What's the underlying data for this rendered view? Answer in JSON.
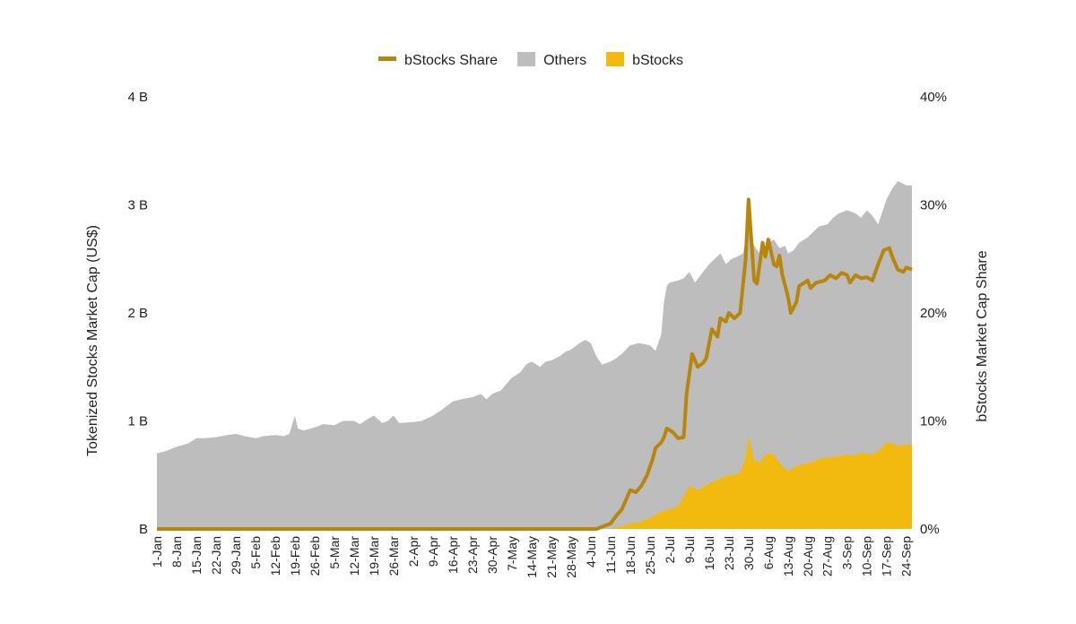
{
  "chart_data": {
    "type": "area",
    "title": "",
    "legend": {
      "placement": "top-center",
      "items": [
        {
          "label": "bStocks Share",
          "kind": "line",
          "color": "#b8860b"
        },
        {
          "label": "Others",
          "kind": "area",
          "color": "#bdbdbd"
        },
        {
          "label": "bStocks",
          "kind": "area",
          "color": "#f2b90f"
        }
      ]
    },
    "y_left": {
      "label": "Tokenized Stocks Market Cap (US$)",
      "range": [
        0,
        4
      ],
      "ticks": [
        {
          "value": 0,
          "label": "B"
        },
        {
          "value": 1,
          "label": "1 B"
        },
        {
          "value": 2,
          "label": "2 B"
        },
        {
          "value": 3,
          "label": "3 B"
        },
        {
          "value": 4,
          "label": "4 B"
        }
      ]
    },
    "y_right": {
      "label": "bStocks Market Cap Share",
      "range": [
        0,
        40
      ],
      "ticks": [
        {
          "value": 0,
          "label": "0%"
        },
        {
          "value": 10,
          "label": "10%"
        },
        {
          "value": 20,
          "label": "20%"
        },
        {
          "value": 30,
          "label": "30%"
        },
        {
          "value": 40,
          "label": "40%"
        }
      ]
    },
    "x_ticks": [
      "1-Jan",
      "8-Jan",
      "15-Jan",
      "22-Jan",
      "29-Jan",
      "5-Feb",
      "12-Feb",
      "19-Feb",
      "26-Feb",
      "5-Mar",
      "12-Mar",
      "19-Mar",
      "26-Mar",
      "2-Apr",
      "9-Apr",
      "16-Apr",
      "23-Apr",
      "30-Apr",
      "7-May",
      "14-May",
      "21-May",
      "28-May",
      "4-Jun",
      "11-Jun",
      "18-Jun",
      "25-Jun",
      "2-Jul",
      "9-Jul",
      "16-Jul",
      "23-Jul",
      "30-Jul",
      "6-Aug",
      "13-Aug",
      "20-Aug",
      "27-Aug",
      "3-Sep",
      "10-Sep",
      "17-Sep",
      "24-Sep"
    ],
    "grid": false,
    "series": [
      {
        "name": "Others",
        "unit": "B US$",
        "stack_role": "total market cap (top of stack)",
        "points": [
          [
            "1-Jan",
            0.7
          ],
          [
            "4-Jan",
            0.72
          ],
          [
            "8-Jan",
            0.76
          ],
          [
            "12-Jan",
            0.79
          ],
          [
            "15-Jan",
            0.84
          ],
          [
            "18-Jan",
            0.84
          ],
          [
            "22-Jan",
            0.85
          ],
          [
            "26-Jan",
            0.87
          ],
          [
            "29-Jan",
            0.88
          ],
          [
            "1-Feb",
            0.86
          ],
          [
            "5-Feb",
            0.84
          ],
          [
            "8-Feb",
            0.86
          ],
          [
            "12-Feb",
            0.87
          ],
          [
            "15-Feb",
            0.86
          ],
          [
            "17-Feb",
            0.88
          ],
          [
            "19-Feb",
            1.05
          ],
          [
            "20-Feb",
            0.93
          ],
          [
            "22-Feb",
            0.91
          ],
          [
            "26-Feb",
            0.94
          ],
          [
            "1-Mar",
            0.97
          ],
          [
            "5-Mar",
            0.96
          ],
          [
            "8-Mar",
            1.0
          ],
          [
            "12-Mar",
            1.0
          ],
          [
            "14-Mar",
            0.97
          ],
          [
            "17-Mar",
            1.02
          ],
          [
            "19-Mar",
            1.05
          ],
          [
            "22-Mar",
            0.98
          ],
          [
            "24-Mar",
            1.0
          ],
          [
            "26-Mar",
            1.05
          ],
          [
            "28-Mar",
            0.98
          ],
          [
            "2-Apr",
            0.99
          ],
          [
            "5-Apr",
            1.0
          ],
          [
            "9-Apr",
            1.05
          ],
          [
            "12-Apr",
            1.1
          ],
          [
            "16-Apr",
            1.18
          ],
          [
            "19-Apr",
            1.2
          ],
          [
            "23-Apr",
            1.22
          ],
          [
            "26-Apr",
            1.25
          ],
          [
            "28-Apr",
            1.2
          ],
          [
            "30-Apr",
            1.25
          ],
          [
            "3-May",
            1.28
          ],
          [
            "7-May",
            1.4
          ],
          [
            "10-May",
            1.45
          ],
          [
            "12-May",
            1.52
          ],
          [
            "14-May",
            1.55
          ],
          [
            "17-May",
            1.5
          ],
          [
            "19-May",
            1.55
          ],
          [
            "21-May",
            1.56
          ],
          [
            "24-May",
            1.6
          ],
          [
            "26-May",
            1.64
          ],
          [
            "28-May",
            1.66
          ],
          [
            "31-May",
            1.72
          ],
          [
            "2-Jun",
            1.75
          ],
          [
            "4-Jun",
            1.72
          ],
          [
            "6-Jun",
            1.6
          ],
          [
            "8-Jun",
            1.52
          ],
          [
            "11-Jun",
            1.55
          ],
          [
            "13-Jun",
            1.58
          ],
          [
            "15-Jun",
            1.62
          ],
          [
            "18-Jun",
            1.7
          ],
          [
            "21-Jun",
            1.72
          ],
          [
            "23-Jun",
            1.71
          ],
          [
            "25-Jun",
            1.7
          ],
          [
            "27-Jun",
            1.65
          ],
          [
            "29-Jun",
            1.8
          ],
          [
            "30-Jun",
            2.1
          ],
          [
            "1-Jul",
            2.25
          ],
          [
            "2-Jul",
            2.28
          ],
          [
            "5-Jul",
            2.3
          ],
          [
            "7-Jul",
            2.32
          ],
          [
            "9-Jul",
            2.38
          ],
          [
            "11-Jul",
            2.28
          ],
          [
            "13-Jul",
            2.35
          ],
          [
            "16-Jul",
            2.45
          ],
          [
            "18-Jul",
            2.5
          ],
          [
            "20-Jul",
            2.55
          ],
          [
            "22-Jul",
            2.45
          ],
          [
            "24-Jul",
            2.5
          ],
          [
            "26-Jul",
            2.52
          ],
          [
            "28-Jul",
            2.55
          ],
          [
            "30-Jul",
            2.8
          ],
          [
            "1-Aug",
            2.62
          ],
          [
            "3-Aug",
            2.55
          ],
          [
            "5-Aug",
            2.58
          ],
          [
            "6-Aug",
            2.65
          ],
          [
            "8-Aug",
            2.68
          ],
          [
            "10-Aug",
            2.6
          ],
          [
            "12-Aug",
            2.62
          ],
          [
            "13-Aug",
            2.55
          ],
          [
            "15-Aug",
            2.58
          ],
          [
            "17-Aug",
            2.65
          ],
          [
            "20-Aug",
            2.7
          ],
          [
            "22-Aug",
            2.75
          ],
          [
            "24-Aug",
            2.8
          ],
          [
            "27-Aug",
            2.82
          ],
          [
            "29-Aug",
            2.88
          ],
          [
            "31-Aug",
            2.92
          ],
          [
            "3-Sep",
            2.95
          ],
          [
            "6-Sep",
            2.92
          ],
          [
            "8-Sep",
            2.88
          ],
          [
            "10-Sep",
            2.95
          ],
          [
            "12-Sep",
            2.9
          ],
          [
            "14-Sep",
            2.82
          ],
          [
            "17-Sep",
            3.05
          ],
          [
            "19-Sep",
            3.15
          ],
          [
            "21-Sep",
            3.22
          ],
          [
            "24-Sep",
            3.18
          ],
          [
            "26-Sep",
            3.18
          ]
        ],
        "color": "#bdbdbd"
      },
      {
        "name": "bStocks",
        "unit": "B US$",
        "points": [
          [
            "1-Jan",
            0.0
          ],
          [
            "11-Jun",
            0.0
          ],
          [
            "13-Jun",
            0.02
          ],
          [
            "16-Jun",
            0.03
          ],
          [
            "18-Jun",
            0.05
          ],
          [
            "21-Jun",
            0.06
          ],
          [
            "23-Jun",
            0.08
          ],
          [
            "25-Jun",
            0.1
          ],
          [
            "27-Jun",
            0.13
          ],
          [
            "29-Jun",
            0.16
          ],
          [
            "2-Jul",
            0.18
          ],
          [
            "5-Jul",
            0.21
          ],
          [
            "7-Jul",
            0.3
          ],
          [
            "9-Jul",
            0.4
          ],
          [
            "12-Jul",
            0.36
          ],
          [
            "14-Jul",
            0.39
          ],
          [
            "16-Jul",
            0.42
          ],
          [
            "18-Jul",
            0.44
          ],
          [
            "20-Jul",
            0.47
          ],
          [
            "23-Jul",
            0.5
          ],
          [
            "25-Jul",
            0.5
          ],
          [
            "27-Jul",
            0.52
          ],
          [
            "29-Jul",
            0.66
          ],
          [
            "30-Jul",
            0.86
          ],
          [
            "1-Aug",
            0.63
          ],
          [
            "3-Aug",
            0.62
          ],
          [
            "5-Aug",
            0.68
          ],
          [
            "6-Aug",
            0.7
          ],
          [
            "8-Aug",
            0.69
          ],
          [
            "10-Aug",
            0.61
          ],
          [
            "13-Aug",
            0.53
          ],
          [
            "15-Aug",
            0.57
          ],
          [
            "17-Aug",
            0.59
          ],
          [
            "20-Aug",
            0.61
          ],
          [
            "22-Aug",
            0.62
          ],
          [
            "24-Aug",
            0.65
          ],
          [
            "27-Aug",
            0.66
          ],
          [
            "30-Aug",
            0.67
          ],
          [
            "3-Sep",
            0.69
          ],
          [
            "5-Sep",
            0.68
          ],
          [
            "8-Sep",
            0.7
          ],
          [
            "10-Sep",
            0.7
          ],
          [
            "12-Sep",
            0.69
          ],
          [
            "14-Sep",
            0.72
          ],
          [
            "17-Sep",
            0.8
          ],
          [
            "19-Sep",
            0.79
          ],
          [
            "21-Sep",
            0.77
          ],
          [
            "24-Sep",
            0.78
          ],
          [
            "26-Sep",
            0.78
          ]
        ],
        "color": "#f2b90f"
      },
      {
        "name": "bStocks Share",
        "unit": "%",
        "axis": "right",
        "points": [
          [
            "1-Jan",
            0.0
          ],
          [
            "6-Jun",
            0.0
          ],
          [
            "11-Jun",
            0.5
          ],
          [
            "13-Jun",
            1.2
          ],
          [
            "15-Jun",
            1.8
          ],
          [
            "17-Jun",
            3.0
          ],
          [
            "18-Jun",
            3.6
          ],
          [
            "20-Jun",
            3.4
          ],
          [
            "22-Jun",
            4.0
          ],
          [
            "24-Jun",
            5.0
          ],
          [
            "26-Jun",
            6.5
          ],
          [
            "27-Jun",
            7.5
          ],
          [
            "29-Jun",
            8.0
          ],
          [
            "30-Jun",
            8.5
          ],
          [
            "1-Jul",
            9.3
          ],
          [
            "3-Jul",
            9.0
          ],
          [
            "5-Jul",
            8.4
          ],
          [
            "7-Jul",
            8.5
          ],
          [
            "8-Jul",
            12.5
          ],
          [
            "10-Jul",
            16.2
          ],
          [
            "12-Jul",
            15.0
          ],
          [
            "14-Jul",
            15.4
          ],
          [
            "15-Jul",
            15.8
          ],
          [
            "17-Jul",
            18.5
          ],
          [
            "19-Jul",
            17.8
          ],
          [
            "20-Jul",
            19.5
          ],
          [
            "22-Jul",
            19.2
          ],
          [
            "23-Jul",
            20.0
          ],
          [
            "25-Jul",
            19.5
          ],
          [
            "27-Jul",
            20.0
          ],
          [
            "29-Jul",
            25.0
          ],
          [
            "30-Jul",
            30.5
          ],
          [
            "1-Aug",
            23.0
          ],
          [
            "2-Aug",
            22.7
          ],
          [
            "4-Aug",
            26.5
          ],
          [
            "5-Aug",
            25.2
          ],
          [
            "6-Aug",
            26.8
          ],
          [
            "8-Aug",
            24.5
          ],
          [
            "9-Aug",
            24.3
          ],
          [
            "10-Aug",
            25.3
          ],
          [
            "11-Aug",
            23.5
          ],
          [
            "13-Aug",
            21.5
          ],
          [
            "14-Aug",
            20.0
          ],
          [
            "16-Aug",
            21.0
          ],
          [
            "17-Aug",
            22.5
          ],
          [
            "20-Aug",
            23.0
          ],
          [
            "21-Aug",
            22.3
          ],
          [
            "23-Aug",
            22.8
          ],
          [
            "26-Aug",
            23.0
          ],
          [
            "28-Aug",
            23.5
          ],
          [
            "30-Aug",
            23.2
          ],
          [
            "1-Sep",
            23.7
          ],
          [
            "3-Sep",
            23.5
          ],
          [
            "4-Sep",
            22.8
          ],
          [
            "6-Sep",
            23.5
          ],
          [
            "8-Sep",
            23.2
          ],
          [
            "10-Sep",
            23.3
          ],
          [
            "12-Sep",
            23.0
          ],
          [
            "14-Sep",
            24.5
          ],
          [
            "16-Sep",
            25.8
          ],
          [
            "18-Sep",
            26.0
          ],
          [
            "19-Sep",
            25.2
          ],
          [
            "21-Sep",
            24.0
          ],
          [
            "23-Sep",
            23.8
          ],
          [
            "24-Sep",
            24.2
          ],
          [
            "26-Sep",
            24.0
          ]
        ],
        "color": "#b8860b"
      }
    ]
  }
}
